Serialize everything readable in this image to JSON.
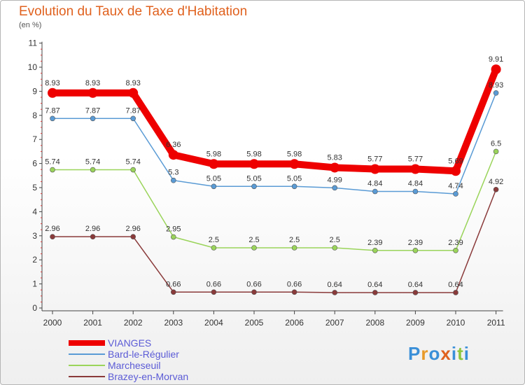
{
  "chart_data": {
    "type": "line",
    "title": "Evolution du Taux de Taxe d'Habitation",
    "subtitle": "(en %)",
    "x": [
      "2000",
      "2001",
      "2002",
      "2003",
      "2004",
      "2005",
      "2006",
      "2007",
      "2008",
      "2009",
      "2010",
      "2011"
    ],
    "yticks": [
      "0",
      "1",
      "2",
      "3",
      "4",
      "5",
      "6",
      "7",
      "8",
      "9",
      "10",
      "11"
    ],
    "ylim": [
      0,
      11
    ],
    "grid": false,
    "legend_position": "bottom-left",
    "series": [
      {
        "name": "VIANGES",
        "color": "#ee0000",
        "values": [
          8.93,
          8.93,
          8.93,
          6.36,
          5.98,
          5.98,
          5.98,
          5.83,
          5.77,
          5.77,
          5.69,
          9.91
        ],
        "labels": [
          "8.93",
          "8.93",
          "8.93",
          "6.36",
          "5.98",
          "5.98",
          "5.98",
          "5.83",
          "5.77",
          "5.77",
          "5.69",
          "9.91"
        ]
      },
      {
        "name": "Bard-le-Régulier",
        "color": "#5a9bd5",
        "values": [
          7.87,
          7.87,
          7.87,
          5.3,
          5.05,
          5.05,
          5.05,
          4.99,
          4.84,
          4.84,
          4.74,
          8.93
        ],
        "labels": [
          "7.87",
          "7.87",
          "7.87",
          "5.3",
          "5.05",
          "5.05",
          "5.05",
          "4.99",
          "4.84",
          "4.84",
          "4.74",
          "8.93"
        ]
      },
      {
        "name": "Marcheseuil",
        "color": "#9ad45a",
        "values": [
          5.74,
          5.74,
          5.74,
          2.95,
          2.5,
          2.5,
          2.5,
          2.5,
          2.39,
          2.39,
          2.39,
          6.5
        ],
        "labels": [
          "5.74",
          "5.74",
          "5.74",
          "2.95",
          "2.5",
          "2.5",
          "2.5",
          "2.5",
          "2.39",
          "2.39",
          "2.39",
          "6.5"
        ]
      },
      {
        "name": "Brazey-en-Morvan",
        "color": "#8a3a3a",
        "values": [
          2.96,
          2.96,
          2.96,
          0.66,
          0.66,
          0.66,
          0.66,
          0.64,
          0.64,
          0.64,
          0.64,
          4.92
        ],
        "labels": [
          "2.96",
          "2.96",
          "2.96",
          "0.66",
          "0.66",
          "0.66",
          "0.66",
          "0.64",
          "0.64",
          "0.64",
          "0.64",
          "4.92"
        ]
      }
    ]
  },
  "legend": {
    "items": [
      "VIANGES",
      "Bard-le-Régulier",
      "Marcheseuil",
      "Brazey-en-Morvan"
    ]
  },
  "logo": {
    "letters": [
      {
        "ch": "P",
        "color": "#3a8fd8"
      },
      {
        "ch": "r",
        "color": "#e89a2a"
      },
      {
        "ch": "o",
        "color": "#3a8fd8"
      },
      {
        "ch": "x",
        "color": "#e0611e"
      },
      {
        "ch": "i",
        "color": "#3a8fd8"
      },
      {
        "ch": "t",
        "color": "#8cc63f"
      },
      {
        "ch": "i",
        "color": "#3a8fd8"
      }
    ]
  }
}
